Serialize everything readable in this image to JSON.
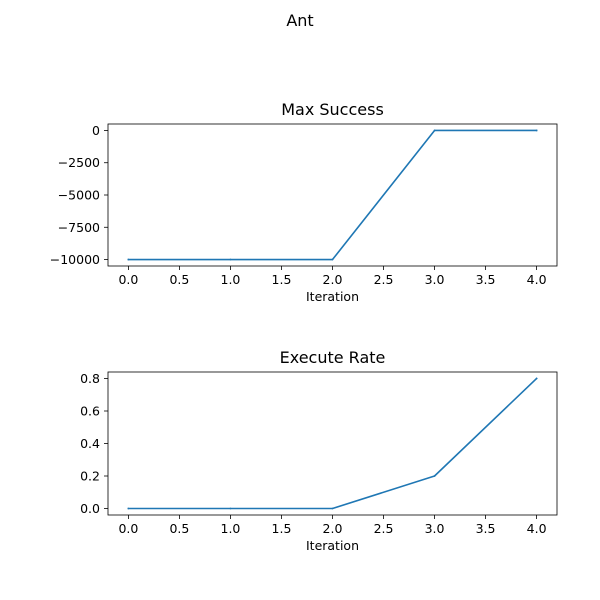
{
  "figure": {
    "suptitle": "Ant"
  },
  "chart_data": [
    {
      "type": "line",
      "title": "Max Success",
      "xlabel": "Iteration",
      "ylabel": "",
      "x": [
        0,
        1,
        2,
        3,
        4
      ],
      "series": [
        {
          "values": [
            -10000,
            -10000,
            -10000,
            0,
            0
          ],
          "color": "#1f77b4"
        }
      ],
      "xlim": [
        -0.2,
        4.2
      ],
      "ylim": [
        -10500,
        500
      ],
      "xticks": [
        0.0,
        0.5,
        1.0,
        1.5,
        2.0,
        2.5,
        3.0,
        3.5,
        4.0
      ],
      "xtick_labels": [
        "0.0",
        "0.5",
        "1.0",
        "1.5",
        "2.0",
        "2.5",
        "3.0",
        "3.5",
        "4.0"
      ],
      "yticks": [
        0,
        -2500,
        -5000,
        -7500,
        -10000
      ],
      "ytick_labels": [
        "0",
        "−2500",
        "−5000",
        "−7500",
        "−10000"
      ],
      "grid": false,
      "legend": "none"
    },
    {
      "type": "line",
      "title": "Execute Rate",
      "xlabel": "Iteration",
      "ylabel": "",
      "x": [
        0,
        1,
        2,
        3,
        4
      ],
      "series": [
        {
          "values": [
            0.0,
            0.0,
            0.0,
            0.2,
            0.8
          ],
          "color": "#1f77b4"
        }
      ],
      "xlim": [
        -0.2,
        4.2
      ],
      "ylim": [
        -0.04,
        0.84
      ],
      "xticks": [
        0.0,
        0.5,
        1.0,
        1.5,
        2.0,
        2.5,
        3.0,
        3.5,
        4.0
      ],
      "xtick_labels": [
        "0.0",
        "0.5",
        "1.0",
        "1.5",
        "2.0",
        "2.5",
        "3.0",
        "3.5",
        "4.0"
      ],
      "yticks": [
        0.0,
        0.2,
        0.4,
        0.6,
        0.8
      ],
      "ytick_labels": [
        "0.0",
        "0.2",
        "0.4",
        "0.6",
        "0.8"
      ],
      "grid": false,
      "legend": "none"
    }
  ]
}
